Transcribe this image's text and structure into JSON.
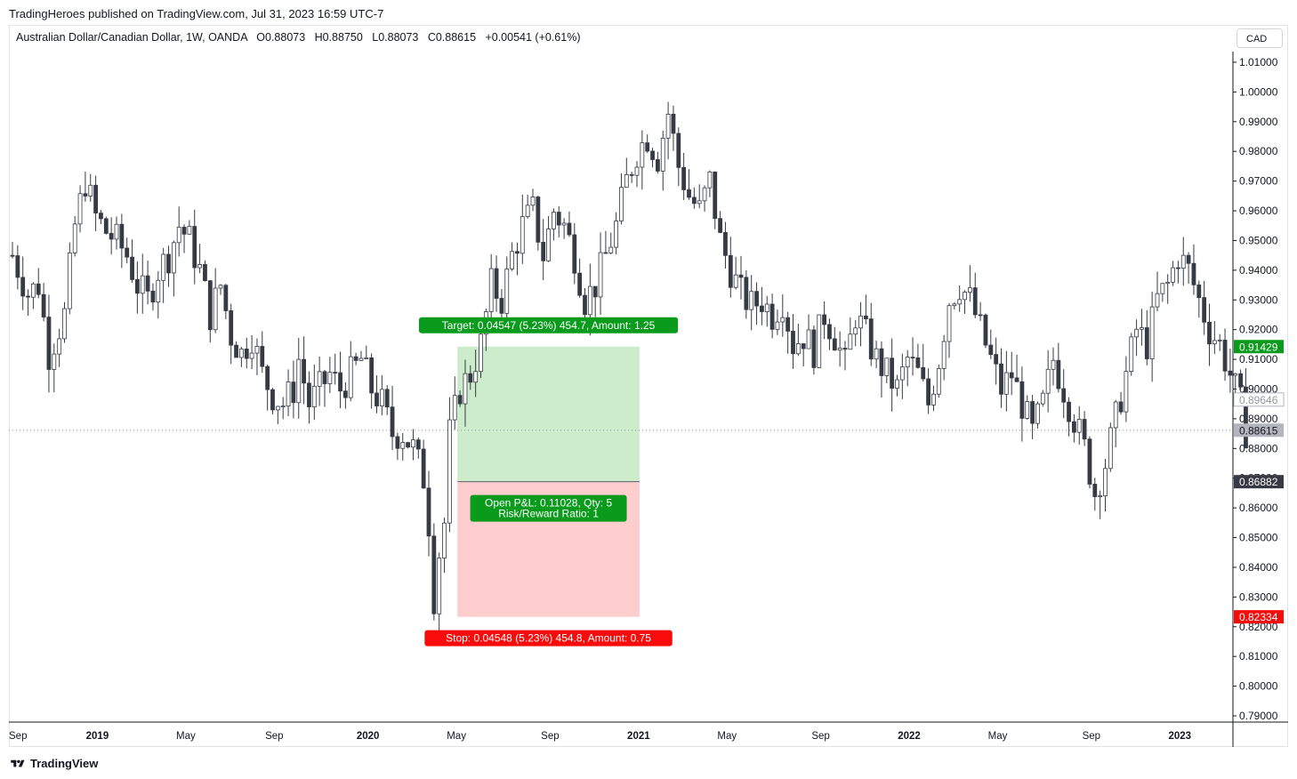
{
  "publisher_line": "TradingHeroes published on TradingView.com, Jul 31, 2023 16:59 UTC-7",
  "legend": {
    "symbol": "Australian Dollar/Canadian Dollar, 1W, OANDA",
    "open": "O0.88073",
    "high": "H0.88750",
    "low": "L0.88073",
    "close": "C0.88615",
    "change": "+0.00541 (+0.61%)"
  },
  "currency_button": "CAD",
  "brand": "TradingView",
  "colors": {
    "candle": "#363a45",
    "profit_zone": "#cdeccb",
    "loss_zone": "#fecdcd",
    "target_label": "#089981",
    "target_green": "#0a9b1c",
    "stop_red": "#f70b0b",
    "current_price_badge": "#b2b5be"
  },
  "chart_data": {
    "type": "candlestick",
    "instrument": "Australian Dollar/Canadian Dollar",
    "timeframe": "1W",
    "y_axis": {
      "ylim": [
        0.785,
        1.015
      ],
      "ticks": [
        "1.01000",
        "1.00000",
        "0.99000",
        "0.98000",
        "0.97000",
        "0.96000",
        "0.95000",
        "0.94000",
        "0.93000",
        "0.92000",
        "0.91000",
        "0.90000",
        "0.89000",
        "0.88000",
        "0.87000",
        "0.86000",
        "0.85000",
        "0.84000",
        "0.83000",
        "0.82000",
        "0.81000",
        "0.80000",
        "0.79000"
      ]
    },
    "x_axis": {
      "ticks": [
        {
          "label": "Sep",
          "x": 0.0
        },
        {
          "label": "2019",
          "x": 17
        },
        {
          "label": "May",
          "x": 34
        },
        {
          "label": "Sep",
          "x": 51
        },
        {
          "label": "2020",
          "x": 69
        },
        {
          "label": "May",
          "x": 86
        },
        {
          "label": "Sep",
          "x": 104
        },
        {
          "label": "2021",
          "x": 121
        },
        {
          "label": "May",
          "x": 138
        },
        {
          "label": "Sep",
          "x": 156
        },
        {
          "label": "2022",
          "x": 173
        },
        {
          "label": "May",
          "x": 190
        },
        {
          "label": "Sep",
          "x": 208
        },
        {
          "label": "2023",
          "x": 225
        }
      ],
      "bar_range": [
        0,
        237
      ]
    },
    "price_badges": {
      "target": "0.91429",
      "previous": "0.89646",
      "current": "0.88615",
      "entry": "0.86882",
      "stop": "0.82334"
    },
    "position": {
      "type": "long",
      "entry": 0.86882,
      "target": 0.91429,
      "stop": 0.82334,
      "start_bar": 85.5,
      "end_bar": 120.5,
      "target_label": "Target: 0.04547 (5.23%) 454.7, Amount: 1.25",
      "stop_label": "Stop: 0.04548 (5.23%) 454.8, Amount: 0.75",
      "pnl_label_1": "Open P&L: 0.11028, Qty: 5",
      "pnl_label_2": "Risk/Reward Ratio: 1"
    },
    "anchors": [
      [
        0,
        0.945
      ],
      [
        3,
        0.932
      ],
      [
        5,
        0.935
      ],
      [
        7,
        0.912
      ],
      [
        10,
        0.925
      ],
      [
        12,
        0.955
      ],
      [
        14,
        0.97
      ],
      [
        16,
        0.958
      ],
      [
        18,
        0.953
      ],
      [
        20,
        0.95
      ],
      [
        22,
        0.945
      ],
      [
        24,
        0.935
      ],
      [
        26,
        0.93
      ],
      [
        28,
        0.94
      ],
      [
        30,
        0.945
      ],
      [
        32,
        0.955
      ],
      [
        34,
        0.95
      ],
      [
        36,
        0.94
      ],
      [
        38,
        0.925
      ],
      [
        40,
        0.935
      ],
      [
        42,
        0.918
      ],
      [
        44,
        0.912
      ],
      [
        46,
        0.918
      ],
      [
        48,
        0.905
      ],
      [
        50,
        0.898
      ],
      [
        52,
        0.895
      ],
      [
        54,
        0.9
      ],
      [
        55,
        0.91
      ],
      [
        57,
        0.895
      ],
      [
        59,
        0.9
      ],
      [
        61,
        0.905
      ],
      [
        63,
        0.9
      ],
      [
        65,
        0.905
      ],
      [
        67,
        0.91
      ],
      [
        69,
        0.9
      ],
      [
        71,
        0.895
      ],
      [
        73,
        0.885
      ],
      [
        75,
        0.885
      ],
      [
        77,
        0.88
      ],
      [
        79,
        0.87
      ],
      [
        80,
        0.855
      ],
      [
        81,
        0.83
      ],
      [
        82,
        0.845
      ],
      [
        83,
        0.855
      ],
      [
        84,
        0.885
      ],
      [
        86,
        0.9
      ],
      [
        88,
        0.905
      ],
      [
        90,
        0.915
      ],
      [
        92,
        0.935
      ],
      [
        94,
        0.93
      ],
      [
        96,
        0.945
      ],
      [
        98,
        0.955
      ],
      [
        100,
        0.96
      ],
      [
        102,
        0.945
      ],
      [
        104,
        0.96
      ],
      [
        106,
        0.955
      ],
      [
        108,
        0.945
      ],
      [
        110,
        0.93
      ],
      [
        112,
        0.935
      ],
      [
        114,
        0.945
      ],
      [
        116,
        0.955
      ],
      [
        118,
        0.97
      ],
      [
        120,
        0.98
      ],
      [
        122,
        0.985
      ],
      [
        124,
        0.978
      ],
      [
        126,
        0.993
      ],
      [
        128,
        0.975
      ],
      [
        130,
        0.965
      ],
      [
        132,
        0.96
      ],
      [
        134,
        0.97
      ],
      [
        136,
        0.95
      ],
      [
        138,
        0.94
      ],
      [
        140,
        0.932
      ],
      [
        142,
        0.928
      ],
      [
        144,
        0.93
      ],
      [
        146,
        0.925
      ],
      [
        148,
        0.93
      ],
      [
        150,
        0.915
      ],
      [
        152,
        0.918
      ],
      [
        154,
        0.913
      ],
      [
        156,
        0.925
      ],
      [
        158,
        0.918
      ],
      [
        160,
        0.908
      ],
      [
        162,
        0.925
      ],
      [
        164,
        0.918
      ],
      [
        166,
        0.91
      ],
      [
        168,
        0.905
      ],
      [
        170,
        0.9
      ],
      [
        172,
        0.91
      ],
      [
        174,
        0.905
      ],
      [
        176,
        0.895
      ],
      [
        178,
        0.91
      ],
      [
        180,
        0.93
      ],
      [
        182,
        0.935
      ],
      [
        184,
        0.93
      ],
      [
        186,
        0.92
      ],
      [
        188,
        0.91
      ],
      [
        190,
        0.9
      ],
      [
        192,
        0.905
      ],
      [
        194,
        0.895
      ],
      [
        196,
        0.885
      ],
      [
        198,
        0.895
      ],
      [
        200,
        0.91
      ],
      [
        202,
        0.9
      ],
      [
        204,
        0.89
      ],
      [
        206,
        0.88
      ],
      [
        208,
        0.865
      ],
      [
        210,
        0.875
      ],
      [
        212,
        0.89
      ],
      [
        214,
        0.905
      ],
      [
        216,
        0.92
      ],
      [
        218,
        0.915
      ],
      [
        220,
        0.93
      ],
      [
        222,
        0.935
      ],
      [
        224,
        0.945
      ],
      [
        226,
        0.94
      ],
      [
        228,
        0.93
      ],
      [
        230,
        0.92
      ],
      [
        232,
        0.915
      ],
      [
        234,
        0.905
      ],
      [
        236,
        0.895
      ],
      [
        237,
        0.886
      ]
    ]
  }
}
